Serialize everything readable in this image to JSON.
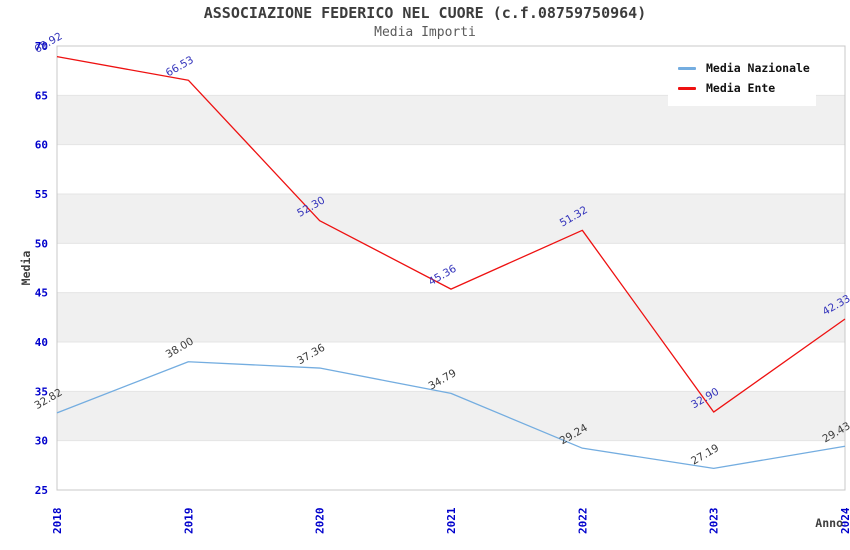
{
  "title": "ASSOCIAZIONE FEDERICO NEL CUORE (c.f.08759750964)",
  "subtitle": "Media Importi",
  "colors": {
    "tick_label": "#0000cc",
    "axis_title": "#3f3f3f",
    "band_fill": "#f0f0f0",
    "gridline": "#e4e4e4",
    "frame": "#c8c8c8",
    "series_nazionale": "#74ade0",
    "series_ente": "#ee1111",
    "label_nazionale": "#3a3a3a",
    "label_ente": "#3333bb"
  },
  "legend": {
    "items": [
      {
        "label": "Media Nazionale"
      },
      {
        "label": "Media Ente"
      }
    ]
  },
  "chart_data": {
    "type": "line",
    "title": "ASSOCIAZIONE FEDERICO NEL CUORE (c.f.08759750964)",
    "subtitle": "Media Importi",
    "xlabel": "Anno",
    "ylabel": "Media",
    "x": [
      "2018",
      "2019",
      "2020",
      "2021",
      "2022",
      "2023",
      "2024"
    ],
    "series": [
      {
        "name": "Media Nazionale",
        "color": "#74ade0",
        "label_color": "#3a3a3a",
        "values": [
          32.82,
          38.0,
          37.36,
          34.79,
          29.24,
          27.19,
          29.43
        ]
      },
      {
        "name": "Media Ente",
        "color": "#ee1111",
        "label_color": "#3333bb",
        "values": [
          68.92,
          66.53,
          52.3,
          45.36,
          51.32,
          32.9,
          42.33
        ]
      }
    ],
    "ylim": [
      25,
      70
    ],
    "ytick_step": 5,
    "grid": "horizontal-bands",
    "legend_position": "top-right"
  }
}
